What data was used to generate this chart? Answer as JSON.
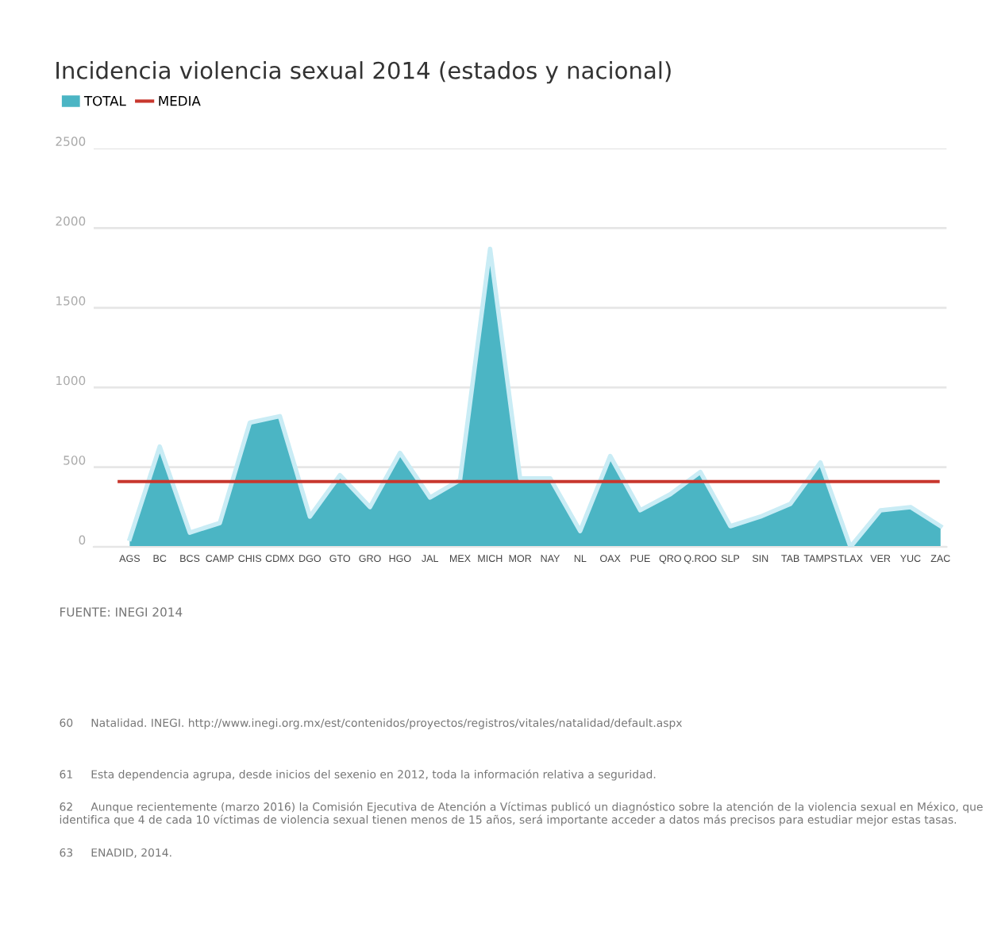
{
  "chart_data": {
    "type": "area",
    "title": "Incidencia violencia sexual 2014 (estados y nacional)",
    "categories": [
      "AGS",
      "BC",
      "BCS",
      "CAMP",
      "CHIS",
      "CDMX",
      "DGO",
      "GTO",
      "GRO",
      "HGO",
      "JAL",
      "MEX",
      "MICH",
      "MOR",
      "NAY",
      "NL",
      "OAX",
      "PUE",
      "QRO",
      "Q.ROO",
      "SLP",
      "SIN",
      "TAB",
      "TAMPS",
      "TLAX",
      "VER",
      "YUC",
      "ZAC"
    ],
    "series": [
      {
        "name": "TOTAL",
        "color": "#4bb5c4",
        "values": [
          50,
          630,
          90,
          150,
          780,
          820,
          190,
          450,
          250,
          590,
          310,
          420,
          1870,
          430,
          430,
          100,
          570,
          230,
          330,
          470,
          130,
          190,
          270,
          530,
          0,
          230,
          250,
          130
        ]
      }
    ],
    "ref_lines": [
      {
        "axis": "y",
        "value": 410,
        "label": "MEDIA",
        "color": "#c8372d"
      }
    ],
    "ylim": [
      0,
      2500
    ],
    "yticks": [
      0,
      500,
      1000,
      1500,
      2000,
      2500
    ],
    "grid": "y",
    "legend": "top left",
    "annotations": [
      "FUENTE: INEGI 2014",
      "60     Natalidad. INEGI. http://www.inegi.org.mx/est/contenidos/proyectos/registros/vitales/natalidad/default.aspx",
      "61     Esta dependencia agrupa, desde inicios del sexenio en 2012, toda la información relativa a seguridad.",
      "62     Aunque recientemente (marzo 2016) la Comisión Ejecutiva de Atención a Víctimas publicó un diagnóstico sobre la atención de la violencia sexual en México, que identifica que 4 de cada 10 víctimas de violencia sexual tienen menos de 15 años, será importante acceder a datos más precisos para estudiar mejor estas tasas.",
      "63     ENADID, 2014."
    ]
  }
}
